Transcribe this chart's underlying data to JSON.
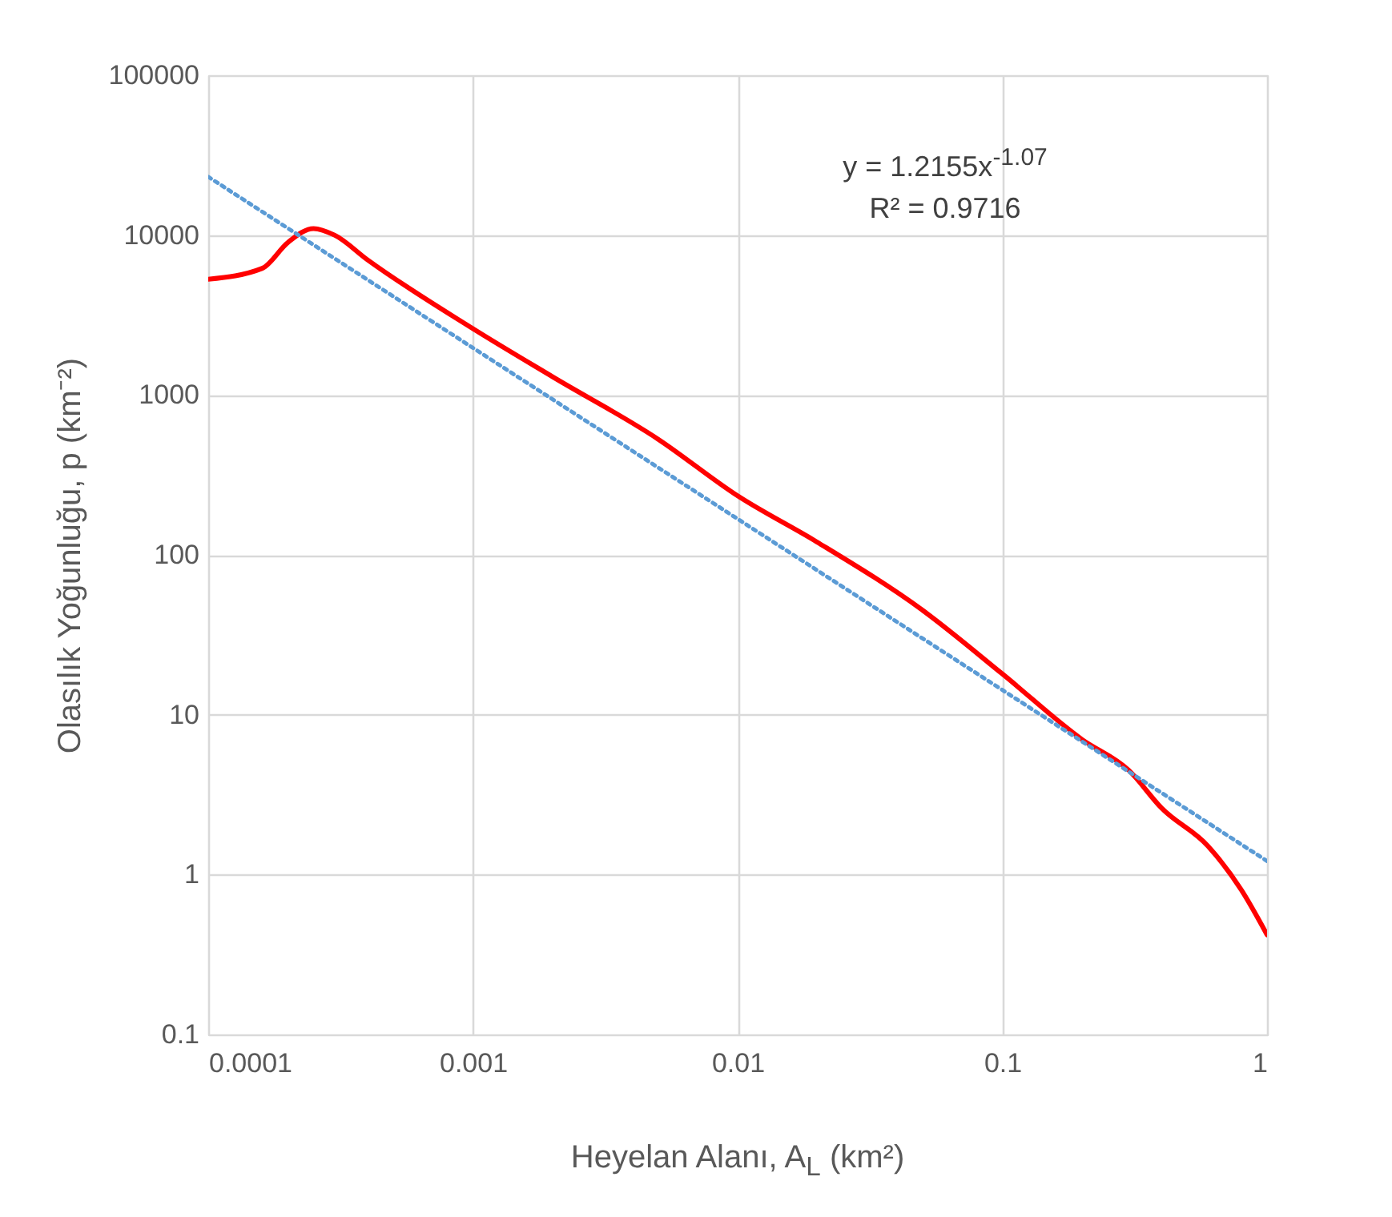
{
  "chart_data": {
    "type": "line",
    "xlabel": "Heyelan Alanı, A$_{L}$ (km²)",
    "ylabel": "Olasılık Yoğunluğu, p (km⁻²)",
    "log": "xy",
    "grid": true,
    "xlim": [
      0.0001,
      1
    ],
    "xticks": [
      0.0001,
      0.001,
      0.01,
      0.1,
      1
    ],
    "ylim": [
      0.1,
      100000
    ],
    "yticks": [
      0.1,
      1,
      10,
      100,
      1000,
      10000,
      100000
    ],
    "annotations": [
      "y = 1.2155x$^{-1.07}$",
      "R² = 0.9716"
    ],
    "series": [
      {
        "color": "#ff0000",
        "line_style": "solid",
        "x": [
          0.0001,
          0.00016,
          0.0002,
          0.00025,
          0.0003,
          0.0004,
          0.001,
          0.002,
          0.005,
          0.01,
          0.02,
          0.05,
          0.1,
          0.2,
          0.3,
          0.4,
          0.6,
          0.8,
          1
        ],
        "values": [
          5300,
          6200,
          9000,
          11000,
          10000,
          7000,
          2600,
          1300,
          530,
          234,
          120,
          45,
          18,
          7,
          4.5,
          2.6,
          1.5,
          0.8,
          0.42
        ]
      },
      {
        "color": "#5b9bd5",
        "line_style": "dotted",
        "x": [
          0.0001,
          1
        ],
        "values": [
          23160,
          1.2155
        ]
      }
    ]
  }
}
